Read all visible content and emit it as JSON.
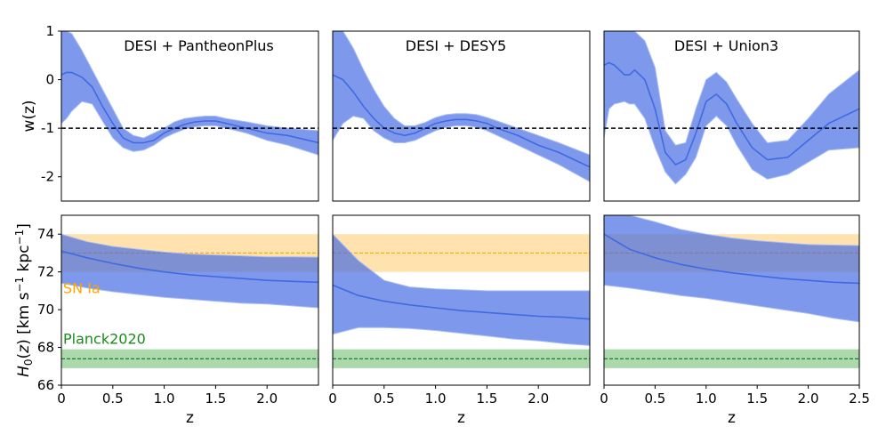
{
  "colors": {
    "band": "#4169e1",
    "median": "#4169e1",
    "reference": "#000000",
    "sn_band": "#ffa500",
    "planck_band": "#2ca02c"
  },
  "chart_data": [
    {
      "type": "area",
      "row": "w",
      "panel": 0,
      "title": "DESI + PantheonPlus",
      "ylabel": "w(z)",
      "xlabel": "",
      "xlim": [
        0,
        2.5
      ],
      "ylim": [
        -2.5,
        1
      ],
      "xticks": [],
      "yticks": [
        "1",
        "0",
        "-1",
        "-2"
      ],
      "reference_line": -1,
      "x": [
        0,
        0.05,
        0.1,
        0.2,
        0.3,
        0.4,
        0.5,
        0.6,
        0.7,
        0.8,
        0.9,
        1.0,
        1.1,
        1.2,
        1.3,
        1.4,
        1.5,
        1.6,
        1.8,
        2.0,
        2.2,
        2.5
      ],
      "median": [
        0.1,
        0.15,
        0.15,
        0.05,
        -0.15,
        -0.55,
        -0.9,
        -1.2,
        -1.3,
        -1.3,
        -1.25,
        -1.1,
        -1.0,
        -0.92,
        -0.87,
        -0.85,
        -0.85,
        -0.9,
        -1.0,
        -1.1,
        -1.15,
        -1.3
      ],
      "upper": [
        1.0,
        1.0,
        0.95,
        0.6,
        0.2,
        -0.2,
        -0.6,
        -1.0,
        -1.15,
        -1.2,
        -1.1,
        -1.0,
        -0.87,
        -0.8,
        -0.77,
        -0.75,
        -0.75,
        -0.8,
        -0.87,
        -0.95,
        -1.0,
        -1.05
      ],
      "lower": [
        -0.9,
        -0.8,
        -0.65,
        -0.45,
        -0.5,
        -0.85,
        -1.2,
        -1.4,
        -1.48,
        -1.45,
        -1.35,
        -1.2,
        -1.1,
        -1.02,
        -0.97,
        -0.95,
        -0.95,
        -1.0,
        -1.1,
        -1.25,
        -1.35,
        -1.55
      ]
    },
    {
      "type": "area",
      "row": "w",
      "panel": 1,
      "title": "DESI + DESY5",
      "xlim": [
        0,
        2.5
      ],
      "ylim": [
        -2.5,
        1
      ],
      "xticks": [],
      "yticks": [],
      "reference_line": -1,
      "x": [
        0,
        0.1,
        0.2,
        0.3,
        0.4,
        0.5,
        0.6,
        0.7,
        0.8,
        0.9,
        1.0,
        1.1,
        1.2,
        1.3,
        1.4,
        1.5,
        1.6,
        1.8,
        2.0,
        2.2,
        2.5
      ],
      "median": [
        0.1,
        0.0,
        -0.25,
        -0.55,
        -0.8,
        -1.0,
        -1.1,
        -1.15,
        -1.1,
        -1.0,
        -0.9,
        -0.85,
        -0.82,
        -0.82,
        -0.85,
        -0.9,
        -1.0,
        -1.15,
        -1.35,
        -1.5,
        -1.8
      ],
      "upper": [
        1.0,
        1.0,
        0.65,
        0.2,
        -0.2,
        -0.55,
        -0.8,
        -0.95,
        -0.95,
        -0.88,
        -0.78,
        -0.72,
        -0.7,
        -0.7,
        -0.72,
        -0.78,
        -0.85,
        -1.0,
        -1.15,
        -1.3,
        -1.55
      ],
      "lower": [
        -1.25,
        -0.9,
        -0.75,
        -0.8,
        -1.05,
        -1.2,
        -1.3,
        -1.3,
        -1.25,
        -1.15,
        -1.05,
        -0.98,
        -0.95,
        -0.95,
        -0.98,
        -1.05,
        -1.15,
        -1.35,
        -1.55,
        -1.75,
        -2.1
      ]
    },
    {
      "type": "area",
      "row": "w",
      "panel": 2,
      "title": "DESI + Union3",
      "xlim": [
        0,
        2.5
      ],
      "ylim": [
        -2.5,
        1
      ],
      "xticks": [],
      "yticks": [],
      "reference_line": -1,
      "x": [
        0,
        0.05,
        0.1,
        0.2,
        0.25,
        0.3,
        0.4,
        0.5,
        0.6,
        0.7,
        0.8,
        0.9,
        1.0,
        1.1,
        1.2,
        1.3,
        1.45,
        1.6,
        1.8,
        2.0,
        2.2,
        2.5
      ],
      "median": [
        0.3,
        0.35,
        0.3,
        0.1,
        0.1,
        0.2,
        0.0,
        -0.6,
        -1.5,
        -1.75,
        -1.65,
        -1.1,
        -0.45,
        -0.3,
        -0.5,
        -0.9,
        -1.4,
        -1.65,
        -1.6,
        -1.25,
        -0.9,
        -0.6
      ],
      "upper": [
        1.0,
        1.0,
        1.0,
        1.0,
        1.0,
        1.0,
        0.8,
        0.25,
        -1.05,
        -1.35,
        -1.3,
        -0.6,
        0.0,
        0.15,
        -0.05,
        -0.4,
        -0.9,
        -1.3,
        -1.25,
        -0.8,
        -0.3,
        0.2
      ],
      "lower": [
        -1.2,
        -0.6,
        -0.5,
        -0.45,
        -0.5,
        -0.5,
        -0.8,
        -1.4,
        -1.9,
        -2.15,
        -1.95,
        -1.6,
        -0.95,
        -0.75,
        -0.95,
        -1.35,
        -1.85,
        -2.05,
        -1.95,
        -1.7,
        -1.45,
        -1.4
      ]
    },
    {
      "type": "area",
      "row": "H0",
      "panel": 0,
      "title": "",
      "ylabel": "H0(z) [km s−1 kpc−1]",
      "xlabel": "z",
      "xlim": [
        0,
        2.5
      ],
      "ylim": [
        66,
        75
      ],
      "xticks": [
        "0",
        "0.5",
        "1.0",
        "1.5",
        "2.0"
      ],
      "yticks": [
        "74",
        "72",
        "70",
        "68",
        "66"
      ],
      "sn_band": [
        72,
        74
      ],
      "sn_line": 73,
      "sn_label": "SN Ia",
      "planck_band": [
        66.9,
        67.9
      ],
      "planck_line": 67.4,
      "planck_label": "Planck2020",
      "x": [
        0,
        0.25,
        0.5,
        0.75,
        1.0,
        1.25,
        1.5,
        1.75,
        2.0,
        2.25,
        2.5
      ],
      "median": [
        73.1,
        72.75,
        72.45,
        72.2,
        72.0,
        71.85,
        71.75,
        71.65,
        71.55,
        71.5,
        71.45
      ],
      "upper": [
        74.0,
        73.6,
        73.35,
        73.2,
        73.05,
        72.95,
        72.9,
        72.85,
        72.8,
        72.8,
        72.78
      ],
      "lower": [
        71.4,
        71.15,
        70.95,
        70.8,
        70.65,
        70.55,
        70.45,
        70.35,
        70.3,
        70.2,
        70.1
      ]
    },
    {
      "type": "area",
      "row": "H0",
      "panel": 1,
      "title": "",
      "xlabel": "z",
      "xlim": [
        0,
        2.5
      ],
      "ylim": [
        66,
        75
      ],
      "xticks": [
        "0",
        "0.5",
        "1.0",
        "1.5",
        "2.0"
      ],
      "yticks": [],
      "sn_band": [
        72,
        74
      ],
      "sn_line": 73,
      "planck_band": [
        66.9,
        67.9
      ],
      "planck_line": 67.4,
      "x": [
        0,
        0.25,
        0.5,
        0.75,
        1.0,
        1.25,
        1.5,
        1.75,
        2.0,
        2.25,
        2.5
      ],
      "median": [
        71.3,
        70.75,
        70.45,
        70.25,
        70.1,
        69.95,
        69.85,
        69.75,
        69.65,
        69.6,
        69.5
      ],
      "upper": [
        74.0,
        72.6,
        71.55,
        71.2,
        71.1,
        71.05,
        71.0,
        71.0,
        71.0,
        71.0,
        71.0
      ],
      "lower": [
        68.7,
        69.05,
        69.05,
        69.0,
        68.9,
        68.75,
        68.6,
        68.45,
        68.35,
        68.2,
        68.1
      ]
    },
    {
      "type": "area",
      "row": "H0",
      "panel": 2,
      "title": "",
      "xlabel": "z",
      "xlim": [
        0,
        2.5
      ],
      "ylim": [
        66,
        75
      ],
      "xticks": [
        "0",
        "0.5",
        "1.0",
        "1.5",
        "2.0",
        "2.5"
      ],
      "yticks": [],
      "sn_band": [
        72,
        74
      ],
      "sn_line": 73,
      "planck_band": [
        66.9,
        67.9
      ],
      "planck_line": 67.4,
      "x": [
        0,
        0.25,
        0.5,
        0.75,
        1.0,
        1.25,
        1.5,
        1.75,
        2.0,
        2.25,
        2.5
      ],
      "median": [
        74.0,
        73.2,
        72.75,
        72.4,
        72.15,
        71.95,
        71.8,
        71.65,
        71.55,
        71.45,
        71.4
      ],
      "upper": [
        75.0,
        75.0,
        74.65,
        74.25,
        74.0,
        73.8,
        73.65,
        73.55,
        73.45,
        73.42,
        73.4
      ],
      "lower": [
        71.3,
        71.15,
        70.95,
        70.75,
        70.6,
        70.4,
        70.2,
        70.0,
        69.8,
        69.55,
        69.35
      ]
    }
  ]
}
